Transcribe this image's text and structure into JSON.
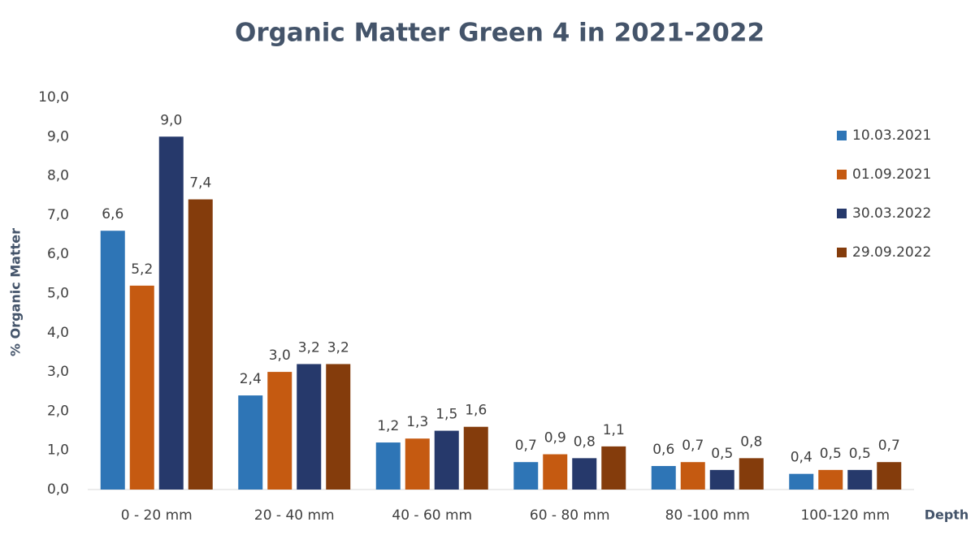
{
  "chart_data": {
    "type": "bar",
    "title": "Organic Matter Green 4 in 2021-2022",
    "y_label": "% Organic Matter",
    "x_label": "Depth",
    "categories": [
      "0  - 20 mm",
      "20 - 40 mm",
      "40 - 60 mm",
      "60 - 80 mm",
      "80 -100 mm",
      "100-120 mm"
    ],
    "series": [
      {
        "name": "10.03.2021",
        "color": "#2e75b6",
        "values": [
          6.6,
          2.4,
          1.2,
          0.7,
          0.6,
          0.4
        ],
        "value_labels": [
          "6,6",
          "2,4",
          "1,2",
          "0,7",
          "0,6",
          "0,4"
        ]
      },
      {
        "name": "01.09.2021",
        "color": "#c55a11",
        "values": [
          5.2,
          3.0,
          1.3,
          0.9,
          0.7,
          0.5
        ],
        "value_labels": [
          "5,2",
          "3,0",
          "1,3",
          "0,9",
          "0,7",
          "0,5"
        ]
      },
      {
        "name": "30.03.2022",
        "color": "#26396b",
        "values": [
          9.0,
          3.2,
          1.5,
          0.8,
          0.5,
          0.5
        ],
        "value_labels": [
          "9,0",
          "3,2",
          "1,5",
          "0,8",
          "0,5",
          "0,5"
        ]
      },
      {
        "name": "29.09.2022",
        "color": "#843c0c",
        "values": [
          7.4,
          3.2,
          1.6,
          1.1,
          0.8,
          0.7
        ],
        "value_labels": [
          "7,4",
          "3,2",
          "1,6",
          "1,1",
          "0,8",
          "0,7"
        ]
      }
    ],
    "ylim": [
      0,
      10
    ],
    "yticks": [
      {
        "value": 0,
        "label": "0,0"
      },
      {
        "value": 1,
        "label": "1,0"
      },
      {
        "value": 2,
        "label": "2,0"
      },
      {
        "value": 3,
        "label": "3,0"
      },
      {
        "value": 4,
        "label": "4,0"
      },
      {
        "value": 5,
        "label": "5,0"
      },
      {
        "value": 6,
        "label": "6,0"
      },
      {
        "value": 7,
        "label": "7,0"
      },
      {
        "value": 8,
        "label": "8,0"
      },
      {
        "value": 9,
        "label": "9,0"
      },
      {
        "value": 10,
        "label": "10,0"
      }
    ],
    "grid": false,
    "legend": "right"
  }
}
